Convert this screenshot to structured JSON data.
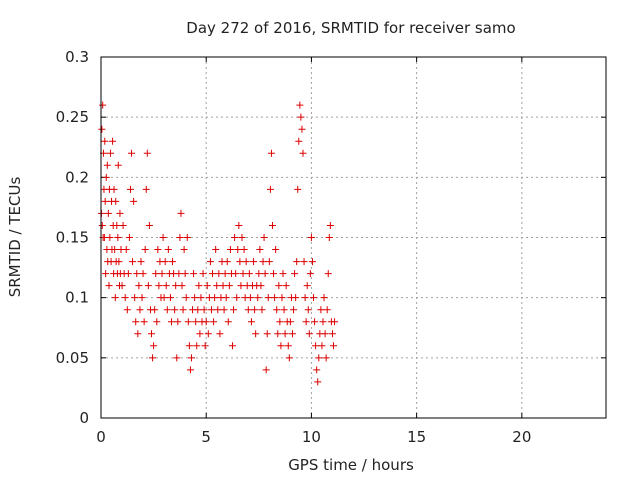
{
  "chart_data": {
    "type": "scatter",
    "title": "Day 272 of 2016, SRMTID for receiver samo",
    "xlabel": "GPS time / hours",
    "ylabel": "SRMTID / TECUs",
    "xlim": [
      0,
      24
    ],
    "ylim": [
      0,
      0.3
    ],
    "xticks": [
      0,
      5,
      10,
      15,
      20
    ],
    "xtick_labels": [
      "0",
      "5",
      "10",
      "15",
      "20"
    ],
    "yticks": [
      0,
      0.05,
      0.1,
      0.15,
      0.2,
      0.25,
      0.3
    ],
    "ytick_labels": [
      "0",
      "0.05",
      "0.1",
      "0.15",
      "0.2",
      "0.25",
      "0.3"
    ],
    "grid": true,
    "marker": "+",
    "marker_color": "#dd0000",
    "series": [
      {
        "name": "SRMTID",
        "points": [
          [
            0.02,
            0.17
          ],
          [
            0.04,
            0.24
          ],
          [
            0.06,
            0.16
          ],
          [
            0.08,
            0.26
          ],
          [
            0.1,
            0.15
          ],
          [
            0.12,
            0.22
          ],
          [
            0.14,
            0.19
          ],
          [
            0.16,
            0.15
          ],
          [
            0.18,
            0.23
          ],
          [
            0.2,
            0.18
          ],
          [
            0.22,
            0.12
          ],
          [
            0.25,
            0.2
          ],
          [
            0.28,
            0.14
          ],
          [
            0.3,
            0.21
          ],
          [
            0.32,
            0.13
          ],
          [
            0.35,
            0.17
          ],
          [
            0.38,
            0.11
          ],
          [
            0.4,
            0.19
          ],
          [
            0.42,
            0.15
          ],
          [
            0.45,
            0.22
          ],
          [
            0.48,
            0.13
          ],
          [
            0.5,
            0.18
          ],
          [
            0.52,
            0.14
          ],
          [
            0.55,
            0.23
          ],
          [
            0.58,
            0.16
          ],
          [
            0.6,
            0.12
          ],
          [
            0.62,
            0.19
          ],
          [
            0.65,
            0.14
          ],
          [
            0.68,
            0.1
          ],
          [
            0.7,
            0.18
          ],
          [
            0.72,
            0.13
          ],
          [
            0.75,
            0.16
          ],
          [
            0.78,
            0.12
          ],
          [
            0.8,
            0.15
          ],
          [
            0.82,
            0.21
          ],
          [
            0.85,
            0.13
          ],
          [
            0.88,
            0.11
          ],
          [
            0.9,
            0.17
          ],
          [
            0.92,
            0.12
          ],
          [
            0.95,
            0.14
          ],
          [
            1.0,
            0.11
          ],
          [
            1.05,
            0.16
          ],
          [
            1.1,
            0.12
          ],
          [
            1.15,
            0.1
          ],
          [
            1.2,
            0.14
          ],
          [
            1.25,
            0.09
          ],
          [
            1.3,
            0.12
          ],
          [
            1.35,
            0.15
          ],
          [
            1.4,
            0.19
          ],
          [
            1.45,
            0.22
          ],
          [
            1.5,
            0.13
          ],
          [
            1.55,
            0.18
          ],
          [
            1.6,
            0.1
          ],
          [
            1.65,
            0.08
          ],
          [
            1.7,
            0.12
          ],
          [
            1.75,
            0.07
          ],
          [
            1.8,
            0.11
          ],
          [
            1.85,
            0.09
          ],
          [
            1.9,
            0.13
          ],
          [
            1.95,
            0.1
          ],
          [
            2.0,
            0.12
          ],
          [
            2.05,
            0.08
          ],
          [
            2.1,
            0.14
          ],
          [
            2.15,
            0.19
          ],
          [
            2.2,
            0.22
          ],
          [
            2.25,
            0.11
          ],
          [
            2.3,
            0.16
          ],
          [
            2.35,
            0.09
          ],
          [
            2.4,
            0.07
          ],
          [
            2.45,
            0.05
          ],
          [
            2.5,
            0.06
          ],
          [
            2.55,
            0.09
          ],
          [
            2.6,
            0.12
          ],
          [
            2.65,
            0.08
          ],
          [
            2.7,
            0.14
          ],
          [
            2.75,
            0.11
          ],
          [
            2.8,
            0.13
          ],
          [
            2.85,
            0.1
          ],
          [
            2.9,
            0.12
          ],
          [
            2.95,
            0.15
          ],
          [
            3.0,
            0.1
          ],
          [
            3.05,
            0.13
          ],
          [
            3.1,
            0.11
          ],
          [
            3.15,
            0.09
          ],
          [
            3.2,
            0.14
          ],
          [
            3.25,
            0.12
          ],
          [
            3.3,
            0.1
          ],
          [
            3.35,
            0.08
          ],
          [
            3.4,
            0.13
          ],
          [
            3.45,
            0.12
          ],
          [
            3.5,
            0.09
          ],
          [
            3.55,
            0.11
          ],
          [
            3.6,
            0.05
          ],
          [
            3.65,
            0.08
          ],
          [
            3.7,
            0.12
          ],
          [
            3.75,
            0.15
          ],
          [
            3.8,
            0.17
          ],
          [
            3.85,
            0.11
          ],
          [
            3.9,
            0.09
          ],
          [
            3.95,
            0.14
          ],
          [
            4.0,
            0.12
          ],
          [
            4.05,
            0.1
          ],
          [
            4.1,
            0.15
          ],
          [
            4.15,
            0.08
          ],
          [
            4.2,
            0.06
          ],
          [
            4.25,
            0.04
          ],
          [
            4.3,
            0.05
          ],
          [
            4.35,
            0.09
          ],
          [
            4.4,
            0.12
          ],
          [
            4.45,
            0.1
          ],
          [
            4.5,
            0.08
          ],
          [
            4.55,
            0.06
          ],
          [
            4.6,
            0.09
          ],
          [
            4.65,
            0.11
          ],
          [
            4.7,
            0.07
          ],
          [
            4.75,
            0.1
          ],
          [
            4.8,
            0.08
          ],
          [
            4.85,
            0.12
          ],
          [
            4.9,
            0.09
          ],
          [
            4.95,
            0.06
          ],
          [
            5.0,
            0.08
          ],
          [
            5.05,
            0.11
          ],
          [
            5.1,
            0.07
          ],
          [
            5.15,
            0.1
          ],
          [
            5.2,
            0.13
          ],
          [
            5.25,
            0.09
          ],
          [
            5.3,
            0.12
          ],
          [
            5.35,
            0.08
          ],
          [
            5.4,
            0.1
          ],
          [
            5.45,
            0.14
          ],
          [
            5.5,
            0.11
          ],
          [
            5.55,
            0.09
          ],
          [
            5.6,
            0.12
          ],
          [
            5.65,
            0.07
          ],
          [
            5.7,
            0.1
          ],
          [
            5.75,
            0.13
          ],
          [
            5.8,
            0.11
          ],
          [
            5.85,
            0.09
          ],
          [
            5.9,
            0.12
          ],
          [
            5.95,
            0.1
          ],
          [
            6.0,
            0.13
          ],
          [
            6.05,
            0.08
          ],
          [
            6.1,
            0.11
          ],
          [
            6.15,
            0.14
          ],
          [
            6.2,
            0.12
          ],
          [
            6.25,
            0.06
          ],
          [
            6.3,
            0.09
          ],
          [
            6.35,
            0.15
          ],
          [
            6.4,
            0.12
          ],
          [
            6.45,
            0.1
          ],
          [
            6.5,
            0.14
          ],
          [
            6.55,
            0.16
          ],
          [
            6.6,
            0.13
          ],
          [
            6.65,
            0.11
          ],
          [
            6.7,
            0.15
          ],
          [
            6.75,
            0.12
          ],
          [
            6.8,
            0.14
          ],
          [
            6.85,
            0.1
          ],
          [
            6.9,
            0.13
          ],
          [
            6.95,
            0.11
          ],
          [
            7.0,
            0.09
          ],
          [
            7.05,
            0.12
          ],
          [
            7.1,
            0.1
          ],
          [
            7.15,
            0.08
          ],
          [
            7.2,
            0.11
          ],
          [
            7.25,
            0.13
          ],
          [
            7.3,
            0.09
          ],
          [
            7.35,
            0.07
          ],
          [
            7.4,
            0.11
          ],
          [
            7.45,
            0.1
          ],
          [
            7.5,
            0.12
          ],
          [
            7.55,
            0.14
          ],
          [
            7.6,
            0.11
          ],
          [
            7.65,
            0.09
          ],
          [
            7.7,
            0.13
          ],
          [
            7.75,
            0.15
          ],
          [
            7.8,
            0.12
          ],
          [
            7.85,
            0.04
          ],
          [
            7.9,
            0.07
          ],
          [
            7.95,
            0.1
          ],
          [
            8.0,
            0.13
          ],
          [
            8.05,
            0.19
          ],
          [
            8.1,
            0.22
          ],
          [
            8.15,
            0.16
          ],
          [
            8.2,
            0.12
          ],
          [
            8.25,
            0.1
          ],
          [
            8.3,
            0.14
          ],
          [
            8.35,
            0.09
          ],
          [
            8.4,
            0.07
          ],
          [
            8.45,
            0.11
          ],
          [
            8.5,
            0.08
          ],
          [
            8.55,
            0.06
          ],
          [
            8.6,
            0.1
          ],
          [
            8.65,
            0.12
          ],
          [
            8.7,
            0.09
          ],
          [
            8.75,
            0.07
          ],
          [
            8.8,
            0.11
          ],
          [
            8.85,
            0.08
          ],
          [
            8.9,
            0.06
          ],
          [
            8.95,
            0.05
          ],
          [
            9.0,
            0.08
          ],
          [
            9.05,
            0.1
          ],
          [
            9.1,
            0.07
          ],
          [
            9.15,
            0.09
          ],
          [
            9.2,
            0.12
          ],
          [
            9.25,
            0.1
          ],
          [
            9.3,
            0.13
          ],
          [
            9.35,
            0.19
          ],
          [
            9.4,
            0.23
          ],
          [
            9.45,
            0.26
          ],
          [
            9.5,
            0.25
          ],
          [
            9.55,
            0.24
          ],
          [
            9.6,
            0.22
          ],
          [
            9.65,
            0.13
          ],
          [
            9.7,
            0.1
          ],
          [
            9.75,
            0.08
          ],
          [
            9.8,
            0.11
          ],
          [
            9.85,
            0.09
          ],
          [
            9.9,
            0.07
          ],
          [
            9.95,
            0.12
          ],
          [
            10.0,
            0.15
          ],
          [
            10.05,
            0.13
          ],
          [
            10.1,
            0.1
          ],
          [
            10.15,
            0.08
          ],
          [
            10.2,
            0.06
          ],
          [
            10.25,
            0.04
          ],
          [
            10.3,
            0.03
          ],
          [
            10.35,
            0.05
          ],
          [
            10.4,
            0.07
          ],
          [
            10.45,
            0.09
          ],
          [
            10.5,
            0.06
          ],
          [
            10.55,
            0.08
          ],
          [
            10.6,
            0.1
          ],
          [
            10.65,
            0.07
          ],
          [
            10.7,
            0.05
          ],
          [
            10.75,
            0.09
          ],
          [
            10.8,
            0.12
          ],
          [
            10.85,
            0.15
          ],
          [
            10.9,
            0.16
          ],
          [
            10.95,
            0.08
          ],
          [
            11.0,
            0.07
          ],
          [
            11.05,
            0.06
          ],
          [
            11.1,
            0.08
          ]
        ]
      }
    ]
  }
}
